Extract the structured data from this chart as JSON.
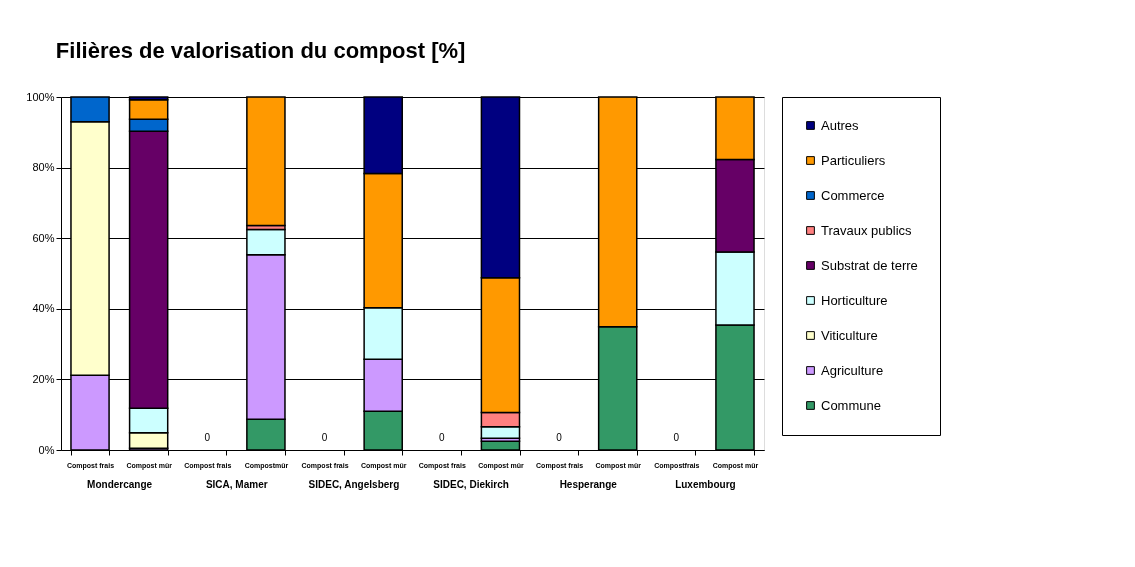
{
  "chart_data": {
    "type": "bar",
    "title": "Filières de valorisation du compost [%]",
    "stacked": true,
    "categories": [
      "Compost frais",
      "Compost mûr",
      "Compost frais",
      "Compostmûr",
      "Compost frais",
      "Compost mûr",
      "Compost frais",
      "Compost mûr",
      "Compost frais",
      "Compost mûr",
      "Compostfrais",
      "Compost mûr"
    ],
    "annotations": [
      "Mondercange",
      "SICA,  Mamer",
      "SIDEC, Angelsberg",
      "SIDEC, Diekirch",
      "Hesperange",
      "Luxembourg"
    ],
    "ylim": [
      0,
      100
    ],
    "yticks": [
      {
        "value": 0,
        "label": "0%"
      },
      {
        "value": 20,
        "label": "20%"
      },
      {
        "value": 40,
        "label": "40%"
      },
      {
        "value": 60,
        "label": "60%"
      },
      {
        "value": 80,
        "label": "80%"
      },
      {
        "value": 100,
        "label": "100%"
      }
    ],
    "grid": "y",
    "legend": "right",
    "series": [
      {
        "name": "Commune",
        "color": "#339966",
        "values": [
          null,
          null,
          null,
          8.7,
          null,
          11.0,
          null,
          2.5,
          null,
          34.9,
          null,
          35.4
        ],
        "value_labels": [
          null,
          null,
          "0",
          null,
          "0",
          null,
          "0",
          null,
          "0",
          null,
          "0",
          null
        ]
      },
      {
        "name": "Agriculture",
        "color": "#cc99ff",
        "values": [
          21.2,
          0.5,
          null,
          46.6,
          null,
          14.7,
          null,
          0.8,
          null,
          null,
          null,
          null
        ]
      },
      {
        "name": "Viticulture",
        "color": "#ffffcc",
        "values": [
          71.8,
          4.4,
          null,
          null,
          null,
          null,
          null,
          null,
          null,
          null,
          null,
          null
        ]
      },
      {
        "name": "Horticulture",
        "color": "#ccffff",
        "values": [
          null,
          6.9,
          null,
          7.2,
          null,
          14.6,
          null,
          3.3,
          null,
          null,
          null,
          20.7
        ]
      },
      {
        "name": "Substrat de terre",
        "color": "#660066",
        "values": [
          null,
          78.5,
          null,
          null,
          null,
          null,
          null,
          null,
          null,
          null,
          null,
          26.2
        ]
      },
      {
        "name": "Travaux  publics",
        "color": "#ff8080",
        "values": [
          null,
          null,
          null,
          1.1,
          null,
          null,
          null,
          4.0,
          null,
          null,
          null,
          null
        ]
      },
      {
        "name": "Commerce",
        "color": "#0066cc",
        "values": [
          7.0,
          3.4,
          null,
          null,
          null,
          null,
          null,
          null,
          null,
          null,
          null,
          null
        ]
      },
      {
        "name": "Particuliers",
        "color": "#ff9900",
        "values": [
          null,
          5.5,
          null,
          36.4,
          null,
          38.0,
          null,
          38.2,
          null,
          65.1,
          null,
          17.7
        ]
      },
      {
        "name": "Autres",
        "color": "#000080",
        "values": [
          null,
          0.8,
          null,
          null,
          null,
          21.7,
          null,
          51.2,
          null,
          null,
          null,
          null
        ]
      }
    ]
  }
}
